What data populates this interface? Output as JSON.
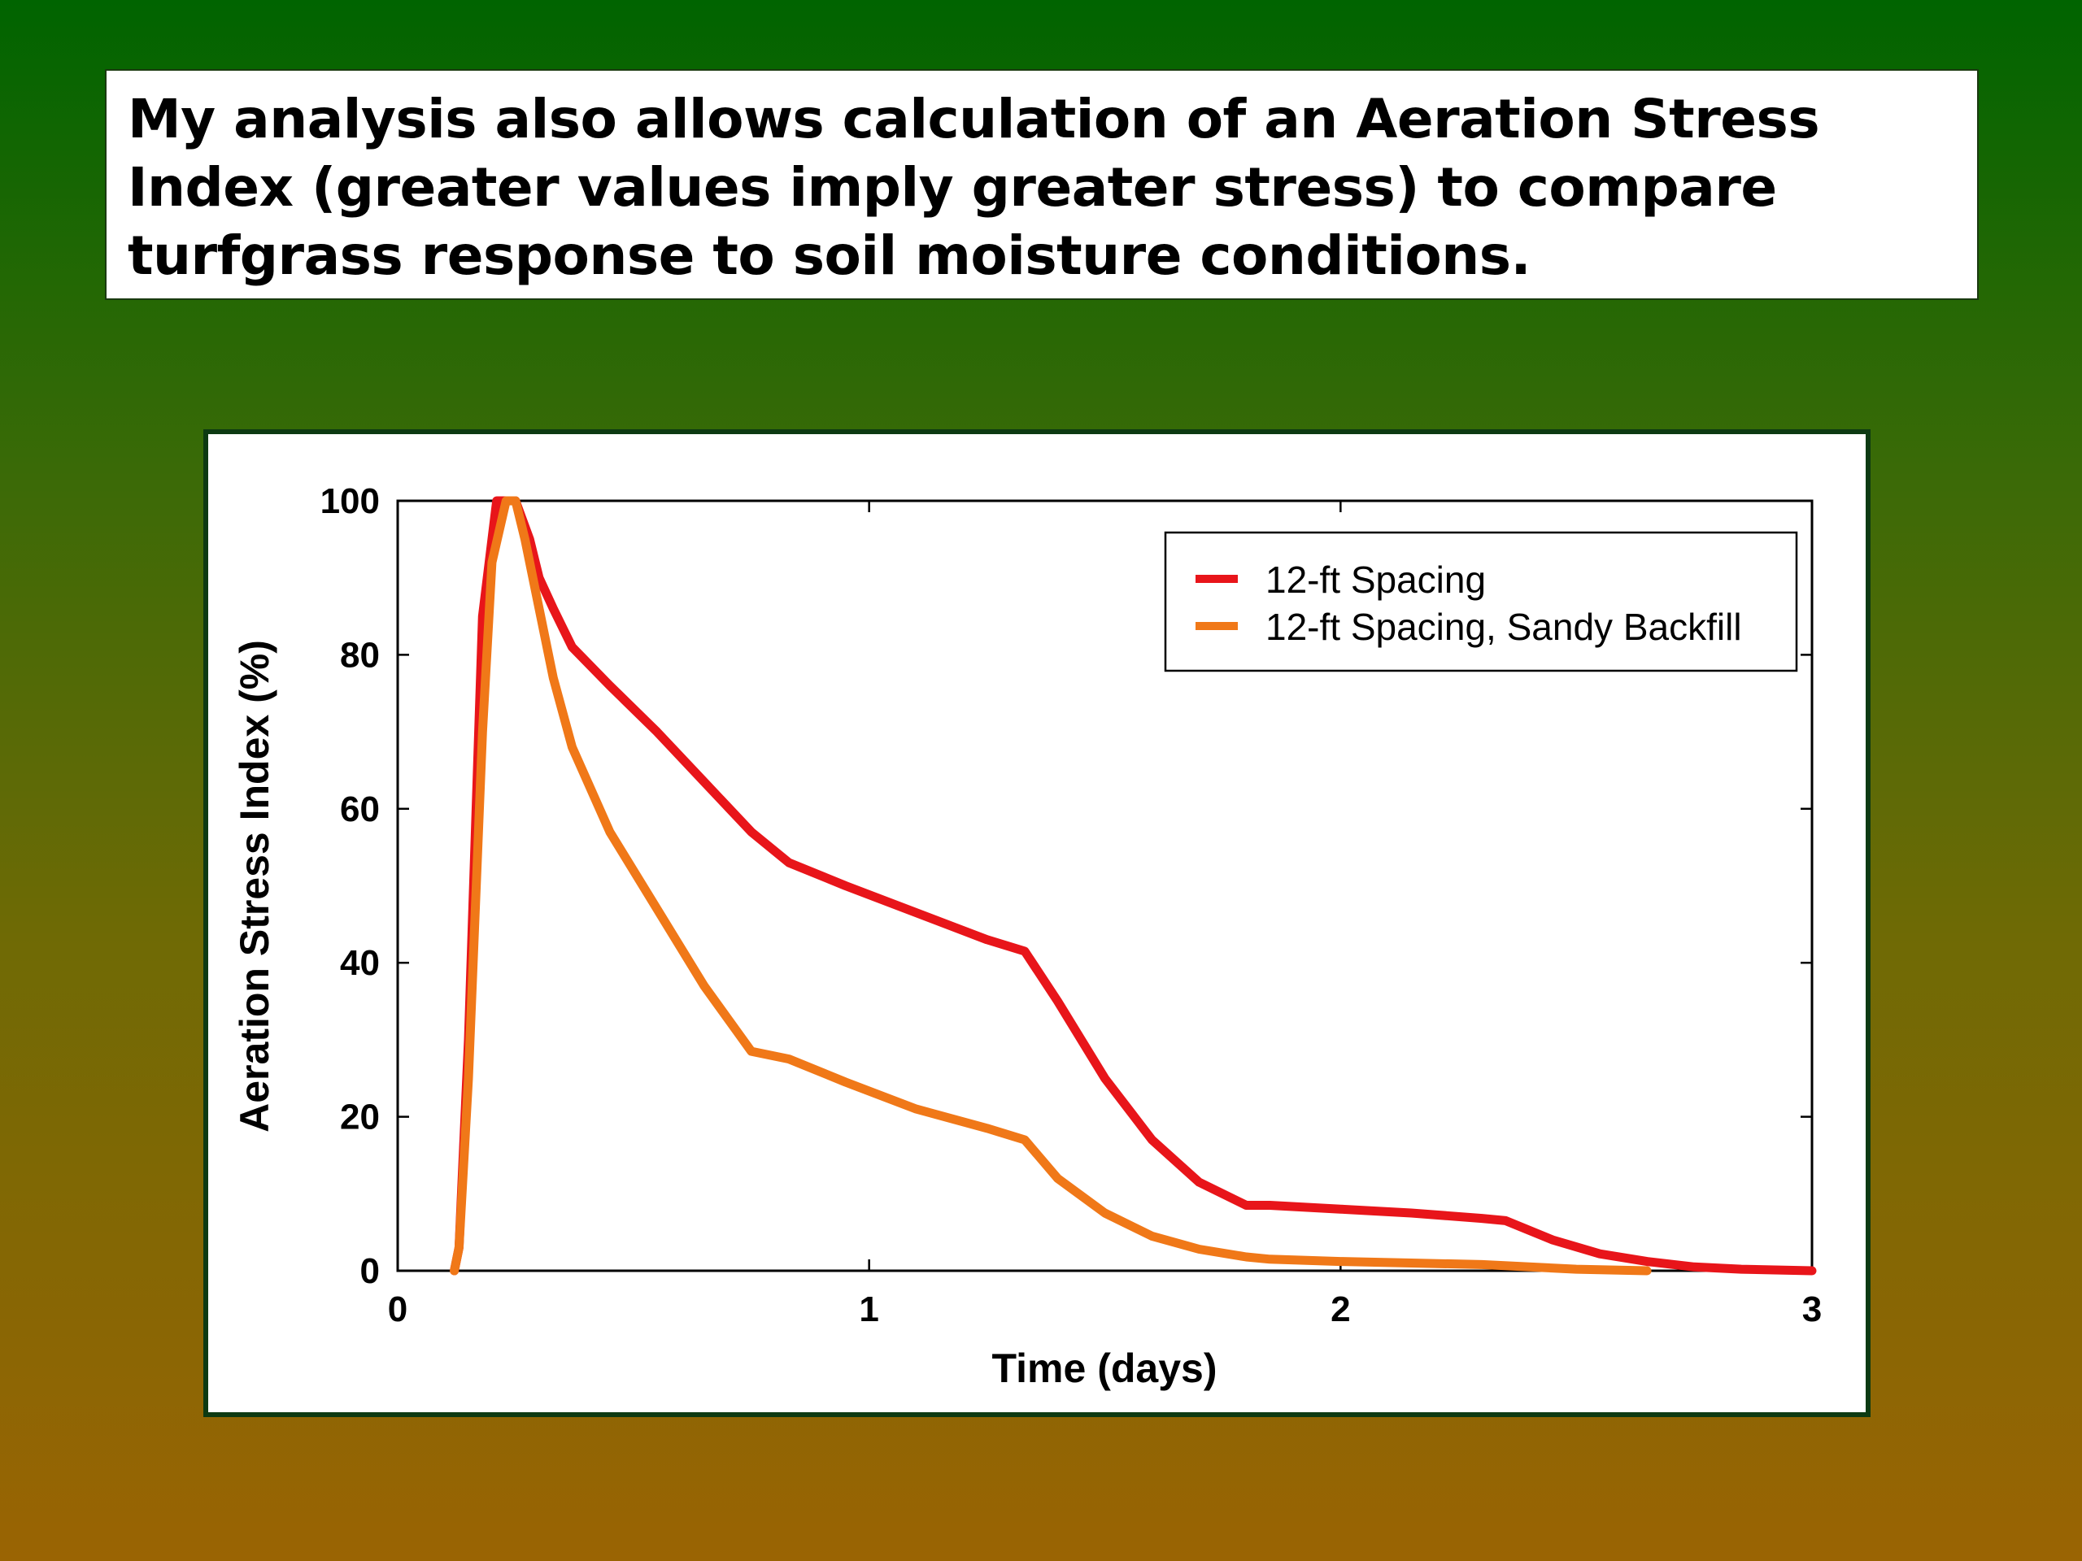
{
  "slide": {
    "caption": "My analysis also allows calculation of an Aeration Stress Index (greater values imply greater stress) to compare turfgrass response to soil moisture conditions."
  },
  "chart_data": {
    "type": "line",
    "title": "",
    "xlabel": "Time (days)",
    "ylabel": "Aeration Stress Index (%)",
    "xlim": [
      0,
      3
    ],
    "ylim": [
      0,
      100
    ],
    "xticks": [
      0,
      1,
      2,
      3
    ],
    "yticks": [
      0,
      20,
      40,
      60,
      80,
      100
    ],
    "legend_position": "top-right",
    "series": [
      {
        "name": "12-ft Spacing",
        "color": "#e8151a",
        "x": [
          0.12,
          0.13,
          0.15,
          0.18,
          0.21,
          0.25,
          0.28,
          0.3,
          0.33,
          0.37,
          0.45,
          0.55,
          0.65,
          0.75,
          0.83,
          0.95,
          1.1,
          1.25,
          1.33,
          1.4,
          1.5,
          1.6,
          1.7,
          1.8,
          1.85,
          2.0,
          2.15,
          2.3,
          2.35,
          2.45,
          2.55,
          2.65,
          2.75,
          2.85,
          3.0
        ],
        "y": [
          0,
          3,
          30,
          85,
          100,
          100,
          95,
          90,
          86,
          81,
          76,
          70,
          63.5,
          57,
          53,
          50,
          46.5,
          43,
          41.5,
          35,
          25,
          17,
          11.5,
          8.5,
          8.5,
          8,
          7.5,
          6.8,
          6.5,
          4,
          2.2,
          1.2,
          0.5,
          0.2,
          0
        ]
      },
      {
        "name": "12-ft Spacing, Sandy Backfill",
        "color": "#f07818",
        "x": [
          0.12,
          0.13,
          0.15,
          0.18,
          0.2,
          0.23,
          0.25,
          0.27,
          0.3,
          0.33,
          0.37,
          0.45,
          0.55,
          0.65,
          0.75,
          0.83,
          0.95,
          1.1,
          1.25,
          1.33,
          1.4,
          1.5,
          1.6,
          1.7,
          1.8,
          1.85,
          2.0,
          2.15,
          2.3,
          2.5,
          2.65
        ],
        "y": [
          0,
          3,
          25,
          70,
          92,
          100,
          100,
          95,
          86,
          77,
          68,
          57,
          47,
          37,
          28.5,
          27.5,
          24.5,
          21,
          18.5,
          17,
          12,
          7.5,
          4.5,
          2.8,
          1.8,
          1.5,
          1.2,
          1,
          0.8,
          0.2,
          0
        ]
      }
    ]
  }
}
